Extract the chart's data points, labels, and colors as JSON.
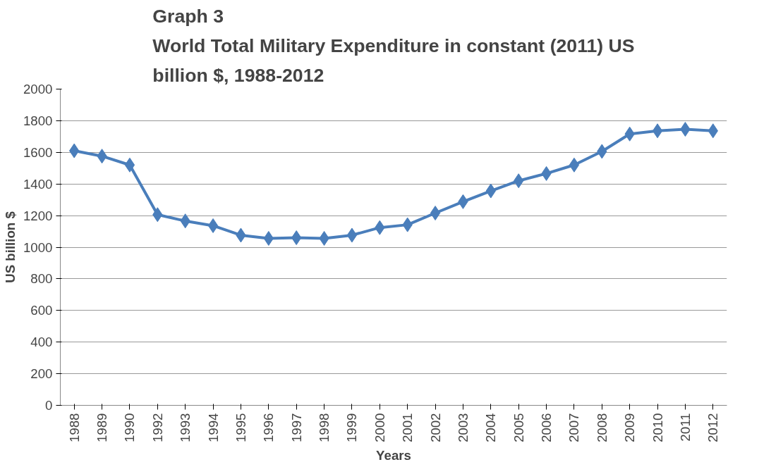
{
  "chart_data": {
    "type": "line",
    "title": "Graph 3\nWorld Total Military Expenditure in constant (2011) US\nbillion $, 1988-2012",
    "xlabel": "Years",
    "ylabel": "US billion $",
    "categories": [
      "1988",
      "1989",
      "1990",
      "1992",
      "1993",
      "1994",
      "1995",
      "1996",
      "1997",
      "1998",
      "1999",
      "2000",
      "2001",
      "2002",
      "2003",
      "2004",
      "2005",
      "2006",
      "2007",
      "2008",
      "2009",
      "2010",
      "2011",
      "2012"
    ],
    "series": [
      {
        "color": "#4a7ebb",
        "values": [
          1610,
          1576,
          1520,
          1206,
          1166,
          1136,
          1076,
          1056,
          1060,
          1056,
          1076,
          1124,
          1142,
          1216,
          1288,
          1356,
          1420,
          1466,
          1520,
          1606,
          1716,
          1736,
          1746,
          1736
        ]
      }
    ],
    "ylim": [
      0,
      2000
    ],
    "yticks": [
      0,
      200,
      400,
      600,
      800,
      1000,
      1200,
      1400,
      1600,
      1800,
      2000
    ],
    "grid": "y",
    "marker": "diamond",
    "line_style": "solid"
  }
}
